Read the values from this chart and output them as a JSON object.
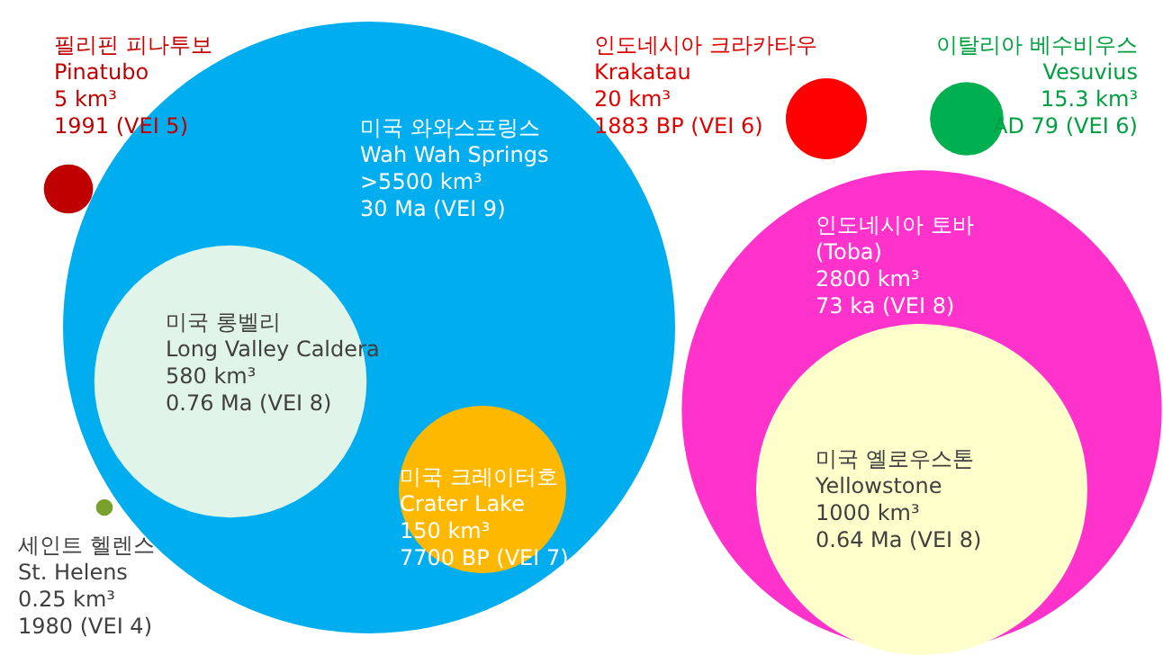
{
  "chart_data": {
    "type": "other",
    "categories": [
      "필리핀 피나투보\nPinatubo",
      "미국 와와스프링스\nWah Wah Springs",
      "미국 롱벨리\nLong Valley Caldera",
      "미국 크레이터호\nCrater Lake",
      "세인트 헬렌스\nSt. Helens",
      "인도네시아 크라카타우\nKrakatau",
      "이탈리아 베수비우스\nVesuvius",
      "인도네시아 토바\n(Toba)",
      "미국 옐로우스톤\nYellowstone"
    ],
    "values": [
      5,
      5500,
      580,
      150,
      0.25,
      20,
      15.3,
      2800,
      1000
    ],
    "value_labels": [
      "5 km³",
      ">5500 km³",
      "580 km³",
      "150 km³",
      "0.25 km³",
      "20 km³",
      "15.3 km³",
      "2800 km³",
      "1000 km³"
    ],
    "annotations": [
      "1991 (VEI 5)",
      "30 Ma (VEI 9)",
      "0.76 Ma (VEI 8)",
      "7700 BP (VEI 7)",
      "1980 (VEI 4)",
      "1883 BP (VEI 6)",
      "AD 79 (VEI 6)",
      "73 ka (VEI 8)",
      "0.64 Ma (VEI 8)"
    ],
    "colors": [
      "#c00000",
      "#00aeef",
      "#e1f4ea",
      "#ffb800",
      "#77a02d",
      "#ff0000",
      "#00b050",
      "#ff33cc",
      "#ffffcc"
    ]
  }
}
